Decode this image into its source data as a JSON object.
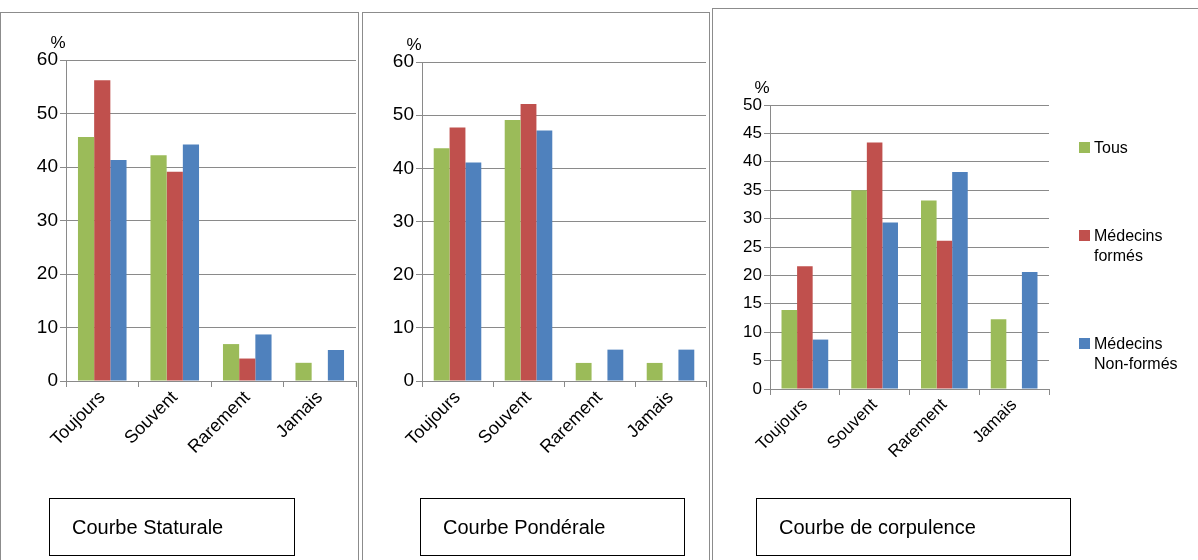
{
  "chart_data": [
    {
      "type": "bar",
      "title": "Courbe Staturale",
      "ylabel": "%",
      "categories": [
        "Toujours",
        "Souvent",
        "Rarement",
        "Jamais"
      ],
      "series": [
        {
          "color": "#9bbb59",
          "values": [
            45.6,
            42.2,
            6.9,
            3.4
          ]
        },
        {
          "color": "#c0504d",
          "values": [
            56.2,
            39.1,
            4.2,
            0
          ]
        },
        {
          "color": "#4f81bd",
          "values": [
            41.3,
            44.2,
            8.7,
            5.8
          ]
        }
      ],
      "ylim": [
        0,
        60
      ],
      "yticks": [
        0,
        10,
        20,
        30,
        40,
        50,
        60
      ],
      "grid": "y"
    },
    {
      "type": "bar",
      "title": "Courbe Pondérale",
      "ylabel": "%",
      "categories": [
        "Toujours",
        "Souvent",
        "Rarement",
        "Jamais"
      ],
      "series": [
        {
          "color": "#9bbb59",
          "values": [
            43.8,
            49.1,
            3.4,
            3.4
          ]
        },
        {
          "color": "#c0504d",
          "values": [
            47.7,
            52.1,
            0,
            0
          ]
        },
        {
          "color": "#4f81bd",
          "values": [
            41.1,
            47.1,
            5.9,
            5.9
          ]
        }
      ],
      "ylim": [
        0,
        60
      ],
      "yticks": [
        0,
        10,
        20,
        30,
        40,
        50,
        60
      ],
      "grid": "y"
    },
    {
      "type": "bar",
      "title": "Courbe de corpulence",
      "ylabel": "%",
      "categories": [
        "Toujours",
        "Souvent",
        "Rarement",
        "Jamais"
      ],
      "series": [
        {
          "name": "Tous",
          "color": "#9bbb59",
          "values": [
            13.9,
            35.0,
            33.2,
            12.3
          ]
        },
        {
          "name": "Médecins formés",
          "color": "#c0504d",
          "values": [
            21.6,
            43.4,
            26.1,
            0
          ]
        },
        {
          "name": "Médecins Non-formés",
          "color": "#4f81bd",
          "values": [
            8.7,
            29.3,
            38.2,
            20.6
          ]
        }
      ],
      "ylim": [
        0,
        50
      ],
      "yticks": [
        0,
        5,
        10,
        15,
        20,
        25,
        30,
        35,
        40,
        45,
        50
      ],
      "grid": "y",
      "legend": "right"
    }
  ]
}
